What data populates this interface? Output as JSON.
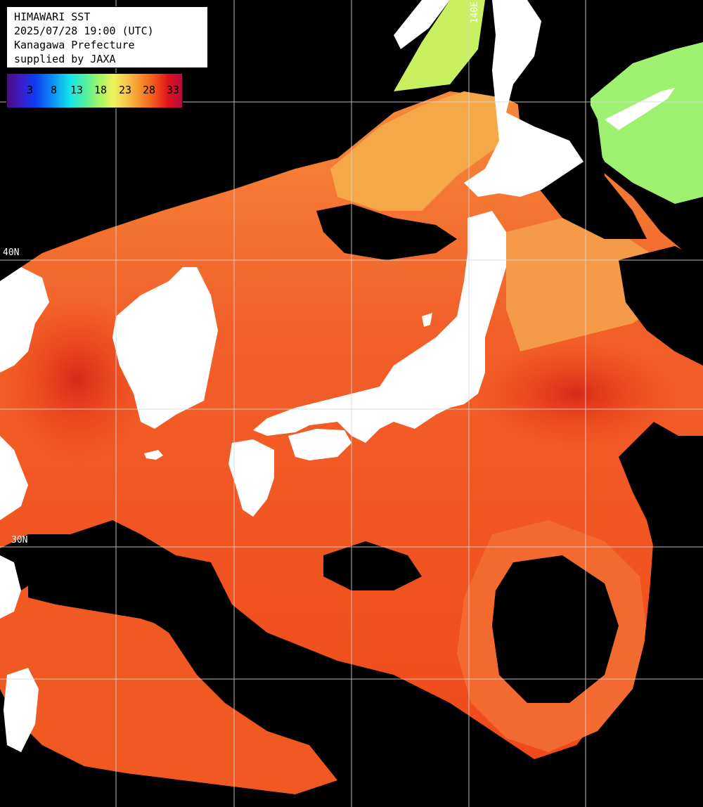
{
  "title": {
    "line1": "HIMAWARI SST",
    "line2": "2025/07/28 19:00 (UTC)",
    "line3": "Kanagawa Prefecture",
    "line4": "supplied by JAXA"
  },
  "legend": {
    "ticks": [
      "3",
      "8",
      "13",
      "18",
      "23",
      "28",
      "33"
    ],
    "colors": [
      "#4b0d7a",
      "#0e3cf0",
      "#14e6ea",
      "#a6f560",
      "#f7c74a",
      "#f2561b",
      "#b50c3e"
    ]
  },
  "grid_labels": {
    "lon_140": "140E",
    "lat_40": "40N",
    "lat_30": "30N"
  },
  "colors": {
    "land": "#ffffff",
    "cloud": "#000000",
    "sea_warm": "#f25a1e",
    "sea_hot": "#e0301a",
    "sea_mild": "#f5a040",
    "sea_cool": "#b4f060",
    "grid": "#d8d8d8"
  }
}
